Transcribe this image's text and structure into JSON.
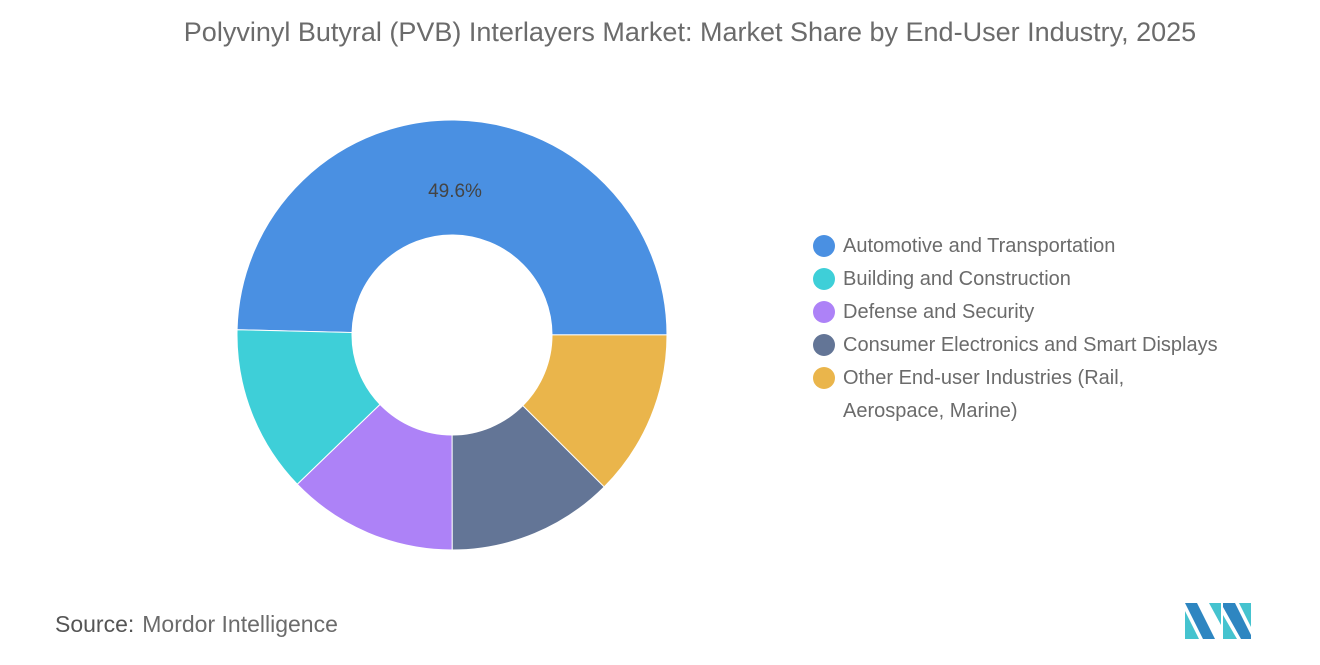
{
  "chart_data": {
    "type": "pie",
    "donut": true,
    "title": "Polyvinyl Butyral (PVB) Interlayers Market: Market Share by End-User Industry, 2025",
    "categories": [
      "Automotive and Transportation",
      "Building and Construction",
      "Defense and Security",
      "Consumer Electronics and Smart Displays",
      "Other End-user Industries (Rail, Aerospace, Marine)"
    ],
    "values": [
      49.6,
      12.6,
      12.8,
      12.5,
      12.5
    ],
    "unit": "%",
    "data_labels": {
      "Automotive and Transportation": "49.6%"
    },
    "colors": [
      "#4a90e2",
      "#3ecfd8",
      "#ad82f7",
      "#637596",
      "#eab54b"
    ],
    "legend_position": "right"
  },
  "source": {
    "label": "Source:",
    "value": "Mordor Intelligence"
  },
  "logo": {
    "text": "Mordor Intelligence logo",
    "colors": [
      "#2e86c1",
      "#45c3cf"
    ]
  }
}
